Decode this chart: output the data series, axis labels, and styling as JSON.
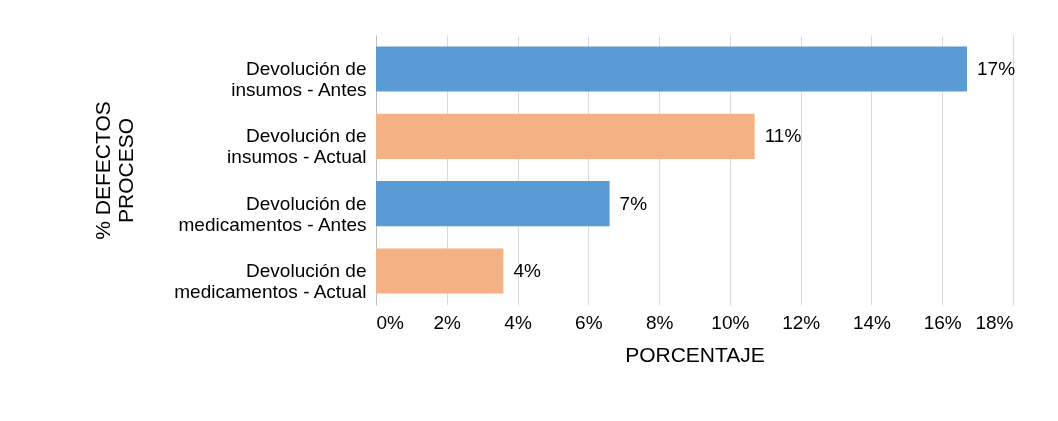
{
  "chart_data": {
    "type": "bar",
    "orientation": "horizontal",
    "xlabel": "PORCENTAJE",
    "ylabel": "% DEFECTOS PROCESO",
    "categories": [
      "Devolución de insumos - Antes",
      "Devolución de insumos - Actual",
      "Devolución de medicamentos - Antes",
      "Devolución de medicamentos - Actual"
    ],
    "values": [
      16.7,
      10.7,
      6.6,
      3.6
    ],
    "colors": [
      "#5b9bd5",
      "#f4b183",
      "#5b9bd5",
      "#f4b183"
    ],
    "value_labels": [
      "17%",
      "11%",
      "7%",
      "4%"
    ],
    "xlim": [
      0,
      18
    ],
    "xticks": [
      {
        "value": 0,
        "label": "0%"
      },
      {
        "value": 2,
        "label": "2%"
      },
      {
        "value": 4,
        "label": "4%"
      },
      {
        "value": 6,
        "label": "6%"
      },
      {
        "value": 8,
        "label": "8%"
      },
      {
        "value": 10,
        "label": "10%"
      },
      {
        "value": 12,
        "label": "12%"
      },
      {
        "value": 14,
        "label": "14%"
      },
      {
        "value": 16,
        "label": "16%"
      },
      {
        "value": 18,
        "label": "18%"
      }
    ],
    "grid": "x",
    "legend": false
  }
}
